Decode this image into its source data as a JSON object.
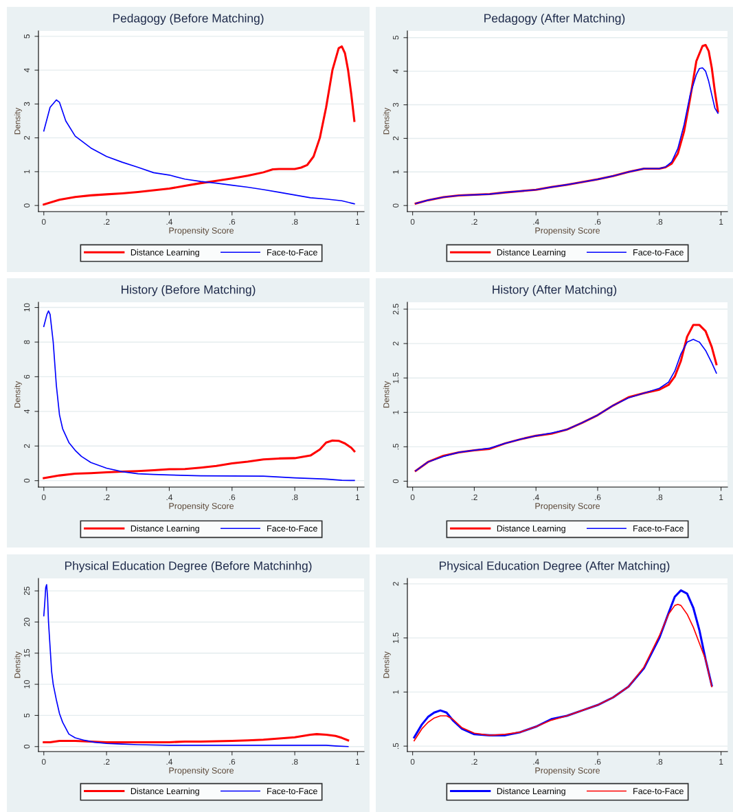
{
  "chart_data": [
    {
      "type": "line",
      "title": "Pedagogy (Before Matching)",
      "xlabel": "Propensity Score",
      "ylabel": "Density",
      "xlim": [
        -0.017,
        1.021
      ],
      "ylim": [
        -0.18,
        5.16
      ],
      "xticks": [
        0,
        {
          "value": 0.2,
          "label": ".2"
        },
        {
          "value": 0.4,
          "label": ".4"
        },
        {
          "value": 0.6,
          "label": ".6"
        },
        {
          "value": 0.8,
          "label": ".8"
        },
        1
      ],
      "yticks": [
        0,
        1,
        2,
        3,
        4,
        5
      ],
      "grid": "y",
      "legend": "bottom",
      "series": [
        {
          "name": "Distance Learning",
          "color": "#ff0000",
          "x": [
            0,
            0.05,
            0.1,
            0.15,
            0.2,
            0.25,
            0.3,
            0.35,
            0.4,
            0.45,
            0.5,
            0.55,
            0.6,
            0.65,
            0.7,
            0.73,
            0.75,
            0.8,
            0.82,
            0.84,
            0.86,
            0.88,
            0.9,
            0.92,
            0.94,
            0.95,
            0.96,
            0.97,
            0.98,
            0.99
          ],
          "values": [
            0.03,
            0.17,
            0.25,
            0.3,
            0.33,
            0.36,
            0.4,
            0.45,
            0.5,
            0.58,
            0.66,
            0.73,
            0.8,
            0.88,
            0.98,
            1.07,
            1.08,
            1.08,
            1.12,
            1.2,
            1.45,
            2.0,
            2.9,
            4.0,
            4.65,
            4.7,
            4.5,
            4.0,
            3.3,
            2.5
          ]
        },
        {
          "name": "Face-to-Face",
          "color": "#0000ff",
          "x": [
            0,
            0.02,
            0.04,
            0.05,
            0.07,
            0.1,
            0.15,
            0.2,
            0.25,
            0.3,
            0.35,
            0.4,
            0.45,
            0.5,
            0.55,
            0.6,
            0.65,
            0.7,
            0.75,
            0.8,
            0.85,
            0.9,
            0.95,
            0.99
          ],
          "values": [
            2.2,
            2.9,
            3.12,
            3.05,
            2.5,
            2.05,
            1.7,
            1.45,
            1.28,
            1.13,
            0.97,
            0.9,
            0.78,
            0.71,
            0.66,
            0.6,
            0.54,
            0.47,
            0.39,
            0.31,
            0.23,
            0.19,
            0.14,
            0.05
          ]
        }
      ]
    },
    {
      "type": "line",
      "title": "Pedagogy (After Matching)",
      "xlabel": "Propensity Score",
      "ylabel": "Density",
      "xlim": [
        -0.017,
        1.021
      ],
      "ylim": [
        -0.18,
        5.2
      ],
      "xticks": [
        0,
        {
          "value": 0.2,
          "label": ".2"
        },
        {
          "value": 0.4,
          "label": ".4"
        },
        {
          "value": 0.6,
          "label": ".6"
        },
        {
          "value": 0.8,
          "label": ".8"
        },
        1
      ],
      "yticks": [
        0,
        1,
        2,
        3,
        4,
        5
      ],
      "grid": "y",
      "legend": "bottom",
      "series": [
        {
          "name": "Distance Learning",
          "color": "#ff0000",
          "x": [
            0.01,
            0.05,
            0.1,
            0.15,
            0.2,
            0.25,
            0.3,
            0.35,
            0.4,
            0.45,
            0.5,
            0.55,
            0.6,
            0.65,
            0.7,
            0.75,
            0.8,
            0.82,
            0.84,
            0.86,
            0.88,
            0.9,
            0.92,
            0.94,
            0.95,
            0.96,
            0.97,
            0.98,
            0.99
          ],
          "values": [
            0.06,
            0.16,
            0.25,
            0.3,
            0.32,
            0.34,
            0.39,
            0.43,
            0.47,
            0.55,
            0.62,
            0.7,
            0.78,
            0.88,
            1.0,
            1.1,
            1.1,
            1.14,
            1.25,
            1.55,
            2.2,
            3.2,
            4.3,
            4.75,
            4.78,
            4.6,
            4.1,
            3.4,
            2.8
          ]
        },
        {
          "name": "Face-to-Face",
          "color": "#0000ff",
          "x": [
            0.01,
            0.05,
            0.1,
            0.15,
            0.2,
            0.25,
            0.3,
            0.35,
            0.4,
            0.45,
            0.5,
            0.55,
            0.6,
            0.65,
            0.7,
            0.75,
            0.8,
            0.82,
            0.84,
            0.86,
            0.88,
            0.9,
            0.92,
            0.93,
            0.94,
            0.95,
            0.96,
            0.97,
            0.98,
            0.99
          ],
          "values": [
            0.06,
            0.16,
            0.25,
            0.3,
            0.32,
            0.34,
            0.39,
            0.43,
            0.47,
            0.55,
            0.62,
            0.7,
            0.78,
            0.88,
            1.0,
            1.1,
            1.1,
            1.15,
            1.3,
            1.7,
            2.4,
            3.3,
            3.9,
            4.08,
            4.1,
            4.0,
            3.7,
            3.3,
            2.9,
            2.75
          ]
        }
      ]
    },
    {
      "type": "line",
      "title": "History (Before Matching)",
      "xlabel": "Propensity Score",
      "ylabel": "Density",
      "xlim": [
        -0.017,
        1.021
      ],
      "ylim": [
        -0.37,
        10.3
      ],
      "xticks": [
        0,
        {
          "value": 0.2,
          "label": ".2"
        },
        {
          "value": 0.4,
          "label": ".4"
        },
        {
          "value": 0.6,
          "label": ".6"
        },
        {
          "value": 0.8,
          "label": ".8"
        },
        1
      ],
      "yticks": [
        0,
        2,
        4,
        6,
        8,
        10
      ],
      "grid": "y",
      "legend": "bottom",
      "series": [
        {
          "name": "Distance Learning",
          "color": "#ff0000",
          "x": [
            0,
            0.05,
            0.1,
            0.15,
            0.2,
            0.25,
            0.3,
            0.35,
            0.4,
            0.45,
            0.5,
            0.55,
            0.6,
            0.65,
            0.7,
            0.75,
            0.8,
            0.85,
            0.88,
            0.9,
            0.92,
            0.94,
            0.96,
            0.98,
            0.99
          ],
          "values": [
            0.15,
            0.3,
            0.4,
            0.43,
            0.48,
            0.52,
            0.55,
            0.6,
            0.66,
            0.67,
            0.75,
            0.85,
            1.0,
            1.1,
            1.23,
            1.28,
            1.3,
            1.45,
            1.8,
            2.2,
            2.32,
            2.3,
            2.15,
            1.9,
            1.7
          ]
        },
        {
          "name": "Face-to-Face",
          "color": "#0000ff",
          "x": [
            0,
            0.01,
            0.015,
            0.02,
            0.03,
            0.04,
            0.05,
            0.06,
            0.08,
            0.1,
            0.12,
            0.15,
            0.2,
            0.25,
            0.3,
            0.35,
            0.4,
            0.5,
            0.6,
            0.7,
            0.8,
            0.9,
            0.95,
            0.99
          ],
          "values": [
            8.9,
            9.6,
            9.8,
            9.6,
            8.0,
            5.5,
            3.8,
            3.0,
            2.2,
            1.75,
            1.4,
            1.05,
            0.72,
            0.52,
            0.4,
            0.36,
            0.33,
            0.28,
            0.27,
            0.26,
            0.16,
            0.09,
            0.02,
            0.01
          ]
        }
      ]
    },
    {
      "type": "line",
      "title": "History (After Matching)",
      "xlabel": "Propensity Score",
      "ylabel": "Density",
      "xlim": [
        -0.017,
        1.021
      ],
      "ylim": [
        -0.085,
        2.6
      ],
      "xticks": [
        0,
        {
          "value": 0.2,
          "label": ".2"
        },
        {
          "value": 0.4,
          "label": ".4"
        },
        {
          "value": 0.6,
          "label": ".6"
        },
        {
          "value": 0.8,
          "label": ".8"
        },
        1
      ],
      "yticks": [
        0,
        {
          "value": 0.5,
          "label": ".5"
        },
        1,
        1.5,
        2,
        2.5
      ],
      "grid": "y",
      "legend": "bottom",
      "series": [
        {
          "name": "Distance Learning",
          "color": "#ff0000",
          "x": [
            0.01,
            0.05,
            0.1,
            0.15,
            0.2,
            0.25,
            0.3,
            0.35,
            0.4,
            0.45,
            0.5,
            0.55,
            0.6,
            0.65,
            0.7,
            0.75,
            0.8,
            0.83,
            0.85,
            0.87,
            0.89,
            0.91,
            0.93,
            0.95,
            0.97,
            0.985
          ],
          "values": [
            0.15,
            0.28,
            0.37,
            0.42,
            0.45,
            0.47,
            0.55,
            0.61,
            0.66,
            0.69,
            0.75,
            0.85,
            0.96,
            1.1,
            1.22,
            1.28,
            1.33,
            1.4,
            1.52,
            1.75,
            2.1,
            2.27,
            2.27,
            2.18,
            1.95,
            1.7
          ]
        },
        {
          "name": "Face-to-Face",
          "color": "#0000ff",
          "x": [
            0.01,
            0.05,
            0.1,
            0.15,
            0.2,
            0.25,
            0.3,
            0.35,
            0.4,
            0.45,
            0.5,
            0.55,
            0.6,
            0.65,
            0.7,
            0.75,
            0.8,
            0.83,
            0.85,
            0.87,
            0.89,
            0.91,
            0.93,
            0.95,
            0.97,
            0.985
          ],
          "values": [
            0.15,
            0.28,
            0.36,
            0.42,
            0.45,
            0.48,
            0.55,
            0.61,
            0.66,
            0.7,
            0.75,
            0.85,
            0.96,
            1.1,
            1.21,
            1.28,
            1.35,
            1.44,
            1.6,
            1.85,
            2.02,
            2.06,
            2.02,
            1.9,
            1.72,
            1.57
          ]
        }
      ]
    },
    {
      "type": "line",
      "title": "Physical Education Degree (Before Matchinhg)",
      "xlabel": "Propensity Score",
      "ylabel": "Density",
      "xlim": [
        -0.017,
        1.021
      ],
      "ylim": [
        -0.8,
        27
      ],
      "xticks": [
        0,
        {
          "value": 0.2,
          "label": ".2"
        },
        {
          "value": 0.4,
          "label": ".4"
        },
        {
          "value": 0.6,
          "label": ".6"
        },
        {
          "value": 0.8,
          "label": ".8"
        },
        1
      ],
      "yticks": [
        0,
        5,
        10,
        15,
        20,
        25
      ],
      "grid": "y",
      "legend": "bottom",
      "series": [
        {
          "name": "Distance Learning",
          "color": "#ff0000",
          "x": [
            0,
            0.02,
            0.05,
            0.1,
            0.15,
            0.2,
            0.3,
            0.4,
            0.45,
            0.5,
            0.6,
            0.65,
            0.7,
            0.75,
            0.8,
            0.85,
            0.87,
            0.9,
            0.93,
            0.95,
            0.97
          ],
          "values": [
            0.7,
            0.7,
            0.9,
            0.9,
            0.8,
            0.7,
            0.7,
            0.7,
            0.8,
            0.8,
            0.9,
            1.0,
            1.1,
            1.3,
            1.5,
            1.9,
            2.0,
            1.9,
            1.7,
            1.4,
            1.0
          ]
        },
        {
          "name": "Face-to-Face",
          "color": "#0000ff",
          "x": [
            0,
            0.003,
            0.006,
            0.009,
            0.012,
            0.015,
            0.02,
            0.025,
            0.03,
            0.04,
            0.05,
            0.06,
            0.08,
            0.1,
            0.13,
            0.16,
            0.2,
            0.25,
            0.3,
            0.4,
            0.6,
            0.8,
            0.9,
            0.93,
            0.97
          ],
          "values": [
            21,
            23,
            25.5,
            26,
            24,
            20,
            16,
            12,
            10,
            7.5,
            5.3,
            3.9,
            2.0,
            1.4,
            1.0,
            0.7,
            0.5,
            0.4,
            0.3,
            0.2,
            0.2,
            0.2,
            0.2,
            0.1,
            0
          ]
        }
      ]
    },
    {
      "type": "line",
      "title": "Physical Education Degree (After Matching)",
      "xlabel": "Propensity Score",
      "ylabel": "Density",
      "xlim": [
        -0.017,
        1.021
      ],
      "ylim": [
        0.45,
        2.05
      ],
      "xticks": [
        0,
        {
          "value": 0.2,
          "label": ".2"
        },
        {
          "value": 0.4,
          "label": ".4"
        },
        {
          "value": 0.6,
          "label": ".6"
        },
        {
          "value": 0.8,
          "label": ".8"
        },
        1
      ],
      "yticks": [
        {
          "value": 0.5,
          "label": ".5"
        },
        1,
        1.5,
        2
      ],
      "grid": "y",
      "legend": "bottom",
      "series": [
        {
          "name": "Distance Learning",
          "color": "#0000ff",
          "x": [
            0.005,
            0.03,
            0.05,
            0.07,
            0.09,
            0.11,
            0.13,
            0.16,
            0.2,
            0.25,
            0.3,
            0.35,
            0.4,
            0.45,
            0.5,
            0.55,
            0.6,
            0.65,
            0.7,
            0.75,
            0.8,
            0.83,
            0.85,
            0.87,
            0.89,
            0.91,
            0.93,
            0.95,
            0.97
          ],
          "values": [
            0.58,
            0.7,
            0.77,
            0.81,
            0.83,
            0.81,
            0.74,
            0.66,
            0.61,
            0.6,
            0.6,
            0.63,
            0.68,
            0.75,
            0.78,
            0.83,
            0.88,
            0.95,
            1.05,
            1.22,
            1.5,
            1.73,
            1.88,
            1.94,
            1.91,
            1.78,
            1.57,
            1.3,
            1.06
          ]
        },
        {
          "name": "Face-to-Face",
          "color": "#ff0000",
          "x": [
            0.005,
            0.03,
            0.05,
            0.07,
            0.09,
            0.11,
            0.13,
            0.16,
            0.2,
            0.25,
            0.3,
            0.35,
            0.4,
            0.45,
            0.5,
            0.55,
            0.6,
            0.65,
            0.7,
            0.75,
            0.8,
            0.83,
            0.85,
            0.86,
            0.87,
            0.89,
            0.91,
            0.93,
            0.95,
            0.97
          ],
          "values": [
            0.55,
            0.66,
            0.72,
            0.76,
            0.78,
            0.78,
            0.75,
            0.67,
            0.62,
            0.6,
            0.61,
            0.63,
            0.68,
            0.74,
            0.78,
            0.83,
            0.88,
            0.95,
            1.05,
            1.23,
            1.52,
            1.72,
            1.8,
            1.81,
            1.8,
            1.72,
            1.6,
            1.45,
            1.3,
            1.05
          ]
        }
      ]
    }
  ]
}
